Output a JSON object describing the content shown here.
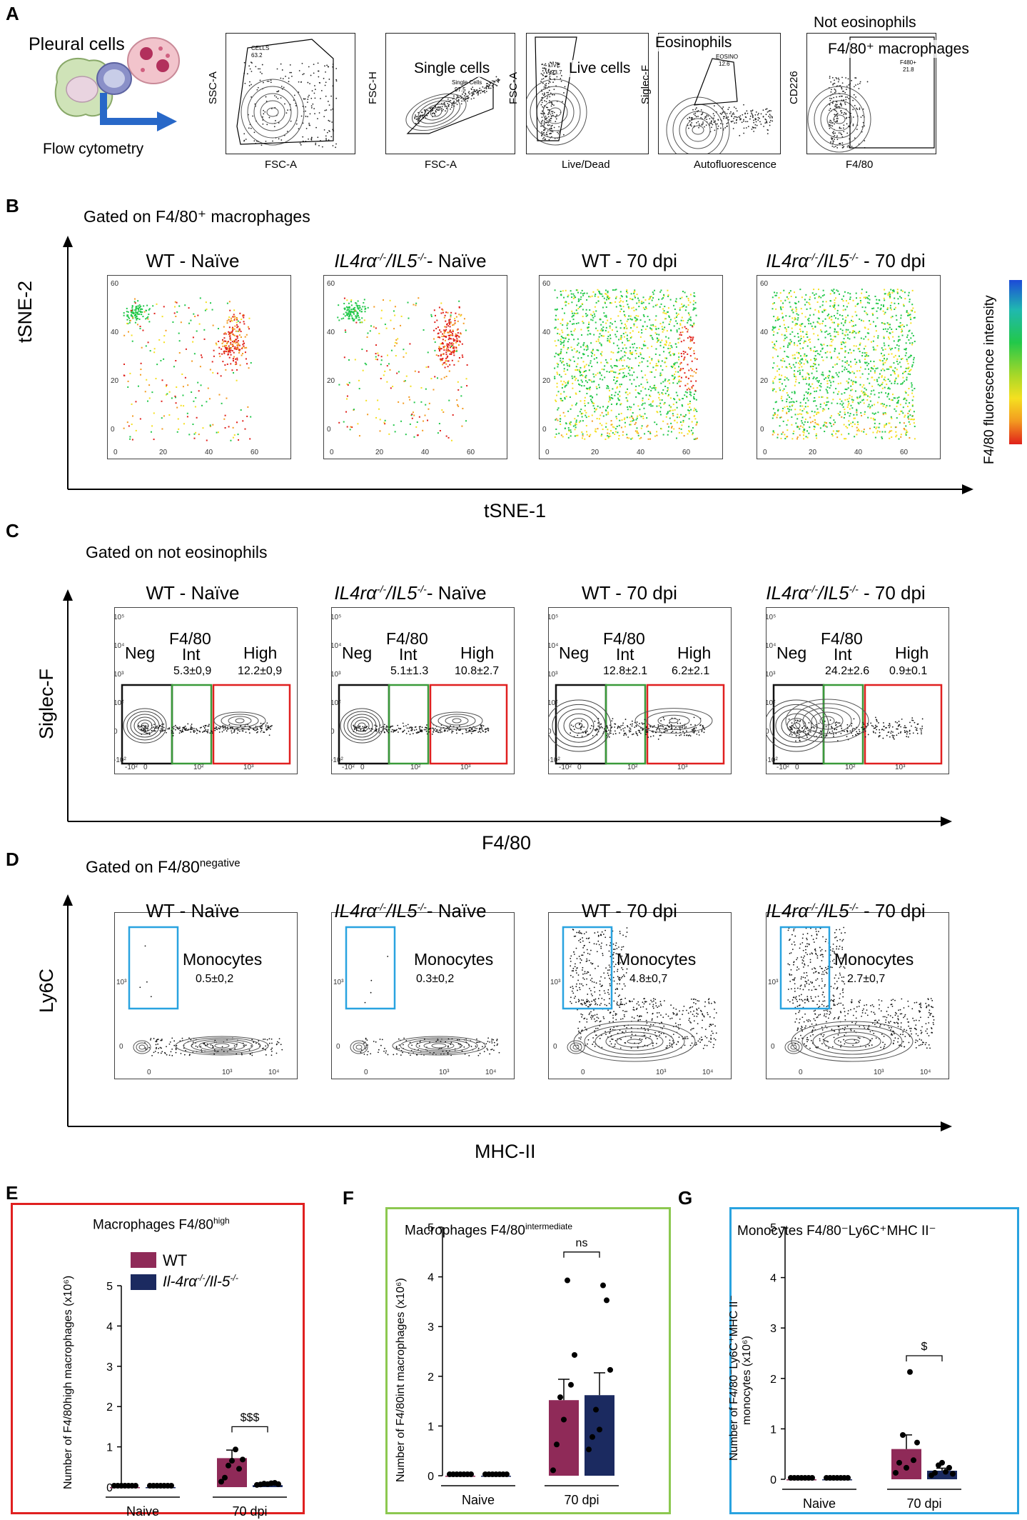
{
  "panels": {
    "A": {
      "letter": "A",
      "pleural_label": "Pleural cells",
      "flow_label": "Flow cytometry",
      "gates": [
        {
          "y": "SSC-A",
          "x": "FSC-A",
          "title": "",
          "gate": "CELLS",
          "pct": "63.2"
        },
        {
          "y": "FSC-H",
          "x": "FSC-A",
          "title": "Single  cells",
          "gate": "Single Cells",
          "pct": "97.5"
        },
        {
          "y": "FSC-A",
          "x": "Live/Dead",
          "title": "Live cells",
          "gate": "LIVE",
          "pct": "93.7"
        },
        {
          "y": "Siglec-F",
          "x": "Autofluorescence",
          "title": "Eosinophils",
          "gate": "EOSINO",
          "pct": "12.6"
        },
        {
          "y": "CD226",
          "x": "F4/80",
          "title": "F4/80⁺ macrophages",
          "title_top": "Not eosinophils",
          "gate": "F480+",
          "pct": "21.8"
        }
      ]
    },
    "B": {
      "letter": "B",
      "subtitle": "Gated on F4/80⁺ macrophages",
      "y_axis": "tSNE-2",
      "x_axis": "tSNE-1",
      "colorbar_label": "F4/80 fluorescence  intensity",
      "ticks": [
        "0",
        "20",
        "40",
        "60"
      ],
      "colors": {
        "low": "#e0201a",
        "mid": "#f5e020",
        "midlow": "#f39a20",
        "high": "#22c84a",
        "top": "#1c4ad8"
      }
    },
    "C": {
      "letter": "C",
      "subtitle": "Gated on not eosinophils",
      "y_axis": "Siglec-F",
      "x_axis": "F4/80",
      "gate_names": {
        "neg": "Neg",
        "f480": "F4/80",
        "int": "Int",
        "high": "High"
      },
      "stats": [
        {
          "int": "5.3±0,9",
          "high": "12.2±0,9"
        },
        {
          "int": "5.1±1.3",
          "high": "10.8±2.7"
        },
        {
          "int": "12.8±2.1",
          "high": "6.2±2.1"
        },
        {
          "int": "24.2±2.6",
          "high": "0.9±0.1"
        }
      ],
      "colors": {
        "neg": "#111111",
        "int": "#3a9a3a",
        "high": "#e02020"
      }
    },
    "D": {
      "letter": "D",
      "subtitle_base": "Gated on F4/80",
      "subtitle_sup": "negative",
      "y_axis": "Ly6C",
      "x_axis": "MHC-II",
      "gate_name": "Monocytes",
      "stats": [
        "0.5±0,2",
        "0.3±0,2",
        "4.8±0,7",
        "2.7±0,7"
      ],
      "color": "#29a3e0"
    },
    "columns": [
      {
        "pre": "WT - Naïve",
        "ital": false
      },
      {
        "pre": "IL4rα",
        "sup1": "-/-",
        "mid": "/IL5",
        "sup2": "-/-",
        "post": "- Naïve",
        "ital": true
      },
      {
        "pre": "WT - 70 dpi",
        "ital": false
      },
      {
        "pre": "IL4rα",
        "sup1": "-/-",
        "mid": "/IL5",
        "sup2": "-/-",
        "post": " - 70 dpi",
        "ital": true
      }
    ]
  },
  "bars": {
    "legend": {
      "wt": "WT",
      "ko_pre": "Il-4rα",
      "ko_sup1": "-/-",
      "ko_mid": "/Il-5",
      "ko_sup2": "-/-"
    },
    "colors": {
      "wt": "#8f2a58",
      "ko": "#1b2a60",
      "E": "#e02020",
      "F": "#8cc850",
      "G": "#29a3e0"
    },
    "E": {
      "letter": "E",
      "title_base": "Macrophages  F4/80",
      "title_sup": "high",
      "ylabel": "Number of F4/80high macrophages (x10⁶)",
      "sig": "$$$"
    },
    "F": {
      "letter": "F",
      "title_base": "Macrophages  F4/80",
      "title_sup": "intermediate",
      "ylabel": "Number of F4/80int macrophages (x10⁶)",
      "sig": "ns"
    },
    "G": {
      "letter": "G",
      "title_text": "Monocytes  F4/80⁻Ly6C⁺MHC  II⁻",
      "ylabel1": "Number of F4/80⁻Ly6C⁺MHC II⁻",
      "ylabel2": "monocytes (x10⁶)",
      "sig": "$"
    }
  },
  "chart_data": [
    {
      "type": "bar",
      "id": "E",
      "title": "Macrophages F4/80high",
      "categories": [
        "Naive",
        "70 dpi"
      ],
      "ylabel": "Number of F4/80high macrophages (x10^6)",
      "ylim": [
        0,
        5
      ],
      "yticks": [
        "0",
        "1",
        "2",
        "3",
        "4",
        "5"
      ],
      "series": [
        {
          "name": "WT",
          "values": [
            0.0,
            0.72
          ],
          "err": [
            0.0,
            0.2
          ],
          "points": [
            [
              0,
              0,
              0,
              0,
              0,
              0,
              0
            ],
            [
              0.1,
              0.2,
              0.5,
              0.62,
              0.9,
              0.42,
              0.65
            ]
          ]
        },
        {
          "name": "Il-4ra-/-/Il-5-/-",
          "values": [
            0.0,
            0.05
          ],
          "err": [
            0.0,
            0.02
          ],
          "points": [
            [
              0,
              0,
              0,
              0,
              0,
              0,
              0
            ],
            [
              0.02,
              0.03,
              0.05,
              0.04,
              0.06,
              0.07,
              0.04
            ]
          ]
        }
      ]
    },
    {
      "type": "bar",
      "id": "F",
      "title": "Macrophages F4/80intermediate",
      "categories": [
        "Naive",
        "70 dpi"
      ],
      "ylabel": "Number of F4/80int macrophages (x10^6)",
      "ylim": [
        0,
        5
      ],
      "yticks": [
        "0",
        "1",
        "2",
        "3",
        "4",
        "5"
      ],
      "series": [
        {
          "name": "WT",
          "values": [
            0.0,
            1.52
          ],
          "err": [
            0.0,
            0.42
          ],
          "points": [
            [
              0,
              0,
              0,
              0,
              0,
              0,
              0
            ],
            [
              0.08,
              0.6,
              1.55,
              1.1,
              3.9,
              1.8,
              2.4
            ]
          ]
        },
        {
          "name": "Il-4ra-/-/Il-5-/-",
          "values": [
            0.0,
            1.62
          ],
          "err": [
            0.0,
            0.45
          ],
          "points": [
            [
              0,
              0,
              0,
              0,
              0,
              0,
              0
            ],
            [
              0.5,
              0.75,
              1.3,
              0.9,
              3.8,
              3.5,
              2.1
            ]
          ]
        }
      ]
    },
    {
      "type": "bar",
      "id": "G",
      "title": "Monocytes F4/80-Ly6C+MHC II-",
      "categories": [
        "Naive",
        "70 dpi"
      ],
      "ylabel": "Number of F4/80-Ly6C+MHC II- monocytes (x10^6)",
      "ylim": [
        0,
        5
      ],
      "yticks": [
        "0",
        "1",
        "2",
        "3",
        "4",
        "5"
      ],
      "series": [
        {
          "name": "WT",
          "values": [
            0.0,
            0.6
          ],
          "err": [
            0.0,
            0.28
          ],
          "points": [
            [
              0,
              0,
              0,
              0,
              0,
              0,
              0
            ],
            [
              0.1,
              0.3,
              0.85,
              0.2,
              2.1,
              0.35,
              0.7
            ]
          ]
        },
        {
          "name": "Il-4ra-/-/Il-5-/-",
          "values": [
            0.0,
            0.17
          ],
          "err": [
            0.0,
            0.05
          ],
          "points": [
            [
              0,
              0,
              0,
              0,
              0,
              0,
              0
            ],
            [
              0.05,
              0.1,
              0.25,
              0.3,
              0.12,
              0.2,
              0.08
            ]
          ]
        }
      ]
    }
  ]
}
